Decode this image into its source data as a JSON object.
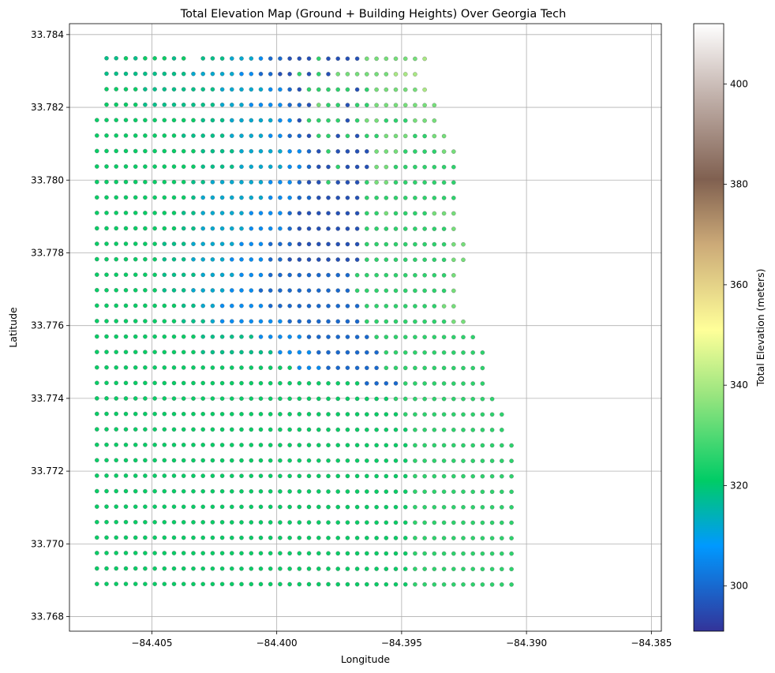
{
  "chart_data": {
    "type": "scatter",
    "title": "Total Elevation Map (Ground + Building Heights) Over Georgia Tech",
    "xlabel": "Longitude",
    "ylabel": "Latitude",
    "xlim": [
      -84.4083,
      -84.3846
    ],
    "ylim": [
      33.7676,
      33.7843
    ],
    "grid": true,
    "x_ticks": [
      {
        "value": -84.405,
        "label": "−84.405"
      },
      {
        "value": -84.4,
        "label": "−84.400"
      },
      {
        "value": -84.395,
        "label": "−84.395"
      },
      {
        "value": -84.39,
        "label": "−84.390"
      },
      {
        "value": -84.385,
        "label": "−84.385"
      }
    ],
    "y_ticks": [
      {
        "value": 33.768,
        "label": "33.768"
      },
      {
        "value": 33.77,
        "label": "33.770"
      },
      {
        "value": 33.772,
        "label": "33.772"
      },
      {
        "value": 33.774,
        "label": "33.774"
      },
      {
        "value": 33.776,
        "label": "33.776"
      },
      {
        "value": 33.778,
        "label": "33.778"
      },
      {
        "value": 33.78,
        "label": "33.780"
      },
      {
        "value": 33.782,
        "label": "33.782"
      },
      {
        "value": 33.784,
        "label": "33.784"
      }
    ],
    "colorbar": {
      "label": "Total Elevation (meters)",
      "colormap": "terrain",
      "range": [
        291,
        412
      ],
      "ticks": [
        {
          "value": 300,
          "label": "300"
        },
        {
          "value": 320,
          "label": "320"
        },
        {
          "value": 340,
          "label": "340"
        },
        {
          "value": 360,
          "label": "360"
        },
        {
          "value": 380,
          "label": "380"
        },
        {
          "value": 400,
          "label": "400"
        }
      ],
      "stops": [
        {
          "value": 291,
          "color": "#333399"
        },
        {
          "value": 308,
          "color": "#0099ff"
        },
        {
          "value": 321,
          "color": "#00cc66"
        },
        {
          "value": 338,
          "color": "#99e57f"
        },
        {
          "value": 351,
          "color": "#ffff99"
        },
        {
          "value": 368,
          "color": "#ccaa78"
        },
        {
          "value": 381,
          "color": "#806050"
        },
        {
          "value": 398,
          "color": "#c3b3ad"
        },
        {
          "value": 412,
          "color": "#ffffff"
        }
      ]
    },
    "grid_rows": {
      "x_first": -84.4072,
      "x_step": 0.000386,
      "y_top": 33.78335,
      "y_bottom": 33.7689,
      "y_tilt_per_deg": -0.0032,
      "rows": [
        {
          "start": 1,
          "values": "bbabaaababbbbcccdeefffgffffhhhhhhi",
          "missing": [
            9
          ]
        },
        {
          "start": 1,
          "values": "bbbbbbbbbcccccddeeffgfgfhhhhhhiii"
        },
        {
          "start": 1,
          "values": "aaaabbbbbbbbcccccddefgggggfghhhhhi"
        },
        {
          "start": 1,
          "values": "aaaabbbbbbbbcccddddeefhggfgghhhhhhh"
        },
        {
          "start": 0,
          "values": "aaaaaaaaaaabbbcccccddfggggfghhggghhh"
        },
        {
          "start": 0,
          "values": "aaaaaaaaabbbbbccccddeefggfgfgghhhgghh"
        },
        {
          "start": 0,
          "values": "aaaaaaaaaaabbbbcccccddefgffffhhhgggghh"
        },
        {
          "start": 0,
          "values": "aaaaaaaaaaabbbbcccccddeffgfffhhggggggg"
        },
        {
          "start": 0,
          "values": "aaaaaaaaaabbccccccdddeffgfffghhggggggg"
        },
        {
          "start": 0,
          "values": "aaaaaaaaaabcccccccdddeefffffgggggggggg"
        },
        {
          "start": 0,
          "values": "aaaaaaaaabbcccccddddefffffffgghgggghhh"
        },
        {
          "start": 0,
          "values": "aaaaaaaaabbcccccddddefffffffgggggggggh"
        },
        {
          "start": 0,
          "values": "aaaaaaabbbcccccdddeeefffffffggggggggghh"
        },
        {
          "start": 0,
          "values": "aaaaaaabbbccccddddeeffffffffggggggggghh"
        },
        {
          "start": 0,
          "values": "aaaaaaabbbbccccdddeeeeeeeeeggggggggggh"
        },
        {
          "start": 0,
          "values": "aaaaaaabbbccccdddeeeeeeeeeeggggggggggh"
        },
        {
          "start": 0,
          "values": "aaaaaaaaabbccdddddeeeeeeeeeegggggggghh"
        },
        {
          "start": 0,
          "values": "aaaaaaaaabbbcdddddddeeeeeeeeggggggggghh"
        },
        {
          "start": 0,
          "values": "aaaaaaaaaaabbbbbbdddddeeeeeeeggggggggggg"
        },
        {
          "start": 0,
          "values": "aaaaaaaaaaabbbbbbbbddddeeeeeeeggggggggggg"
        },
        {
          "start": 0,
          "values": "aaaaaaaaaaaaaaaaaaaaadddeeeeeeggggggggggg"
        },
        {
          "start": 0,
          "values": "aaaaaaaaaaaaaaaaaaaaaaaaaaaaeeeeggggggggg"
        },
        {
          "start": 0,
          "values": "aaaaaaaaaaaaaaaaaaaaaaaaaaaaaaaggggggggggg"
        },
        {
          "start": 0,
          "values": "aaaaaaaaaaaaaaaaaaaaaaaaaaaaaaaaggggggggggg"
        },
        {
          "start": 0,
          "values": "aaaaaaaaaaaaaaaaaaaaaaaaaaaaaaaaagggggggggg"
        },
        {
          "start": 0,
          "values": "aaaaaaaaaaaaaaaaaaaaaaaaaaaaaaaaaggggggggggg"
        },
        {
          "start": 0,
          "values": "aaaaaaaaaaaaaaaaaaaaaaaaaaaaaaaaaggggggggggg"
        },
        {
          "start": 0,
          "values": "aaaaaaaaaaaaaaaaaaaaaaaaaaaaaaaaaggggggggggg"
        },
        {
          "start": 0,
          "values": "aaaaaaaaaaaaaaaaaaaaaaaaaaaaaaaaaggggggggggg"
        },
        {
          "start": 0,
          "values": "aaaaaaaaaaaaaaaaaaaaaaaaaaaaaaaaaggggggggggg"
        },
        {
          "start": 0,
          "values": "aaaaaaaaaaaaaaaaaaaaaaaaaaaaaaaaaggggggggggg"
        },
        {
          "start": 0,
          "values": "aaaaaaaaaaaaaaaaaaaaaaaaaaaaaaaaaggggggggggg"
        },
        {
          "start": 0,
          "values": "aaaaaaaaaaaaaaaaaaaaaaaaaaaaaaaaaggggggggggg"
        },
        {
          "start": 0,
          "values": "aaaaaaaaaaaaaaaaaaaaaaaaaaaaaaaaaggggggggggg"
        },
        {
          "start": 0,
          "values": "aaaaaaaaaaaaaaaaaaaaaaaaaaaaaaaaaggggggggggg"
        }
      ],
      "value_codes": {
        "a": 322,
        "b": 318,
        "c": 312,
        "d": 306,
        "e": 300,
        "f": 296,
        "g": 326,
        "h": 334,
        "i": 340
      }
    }
  }
}
